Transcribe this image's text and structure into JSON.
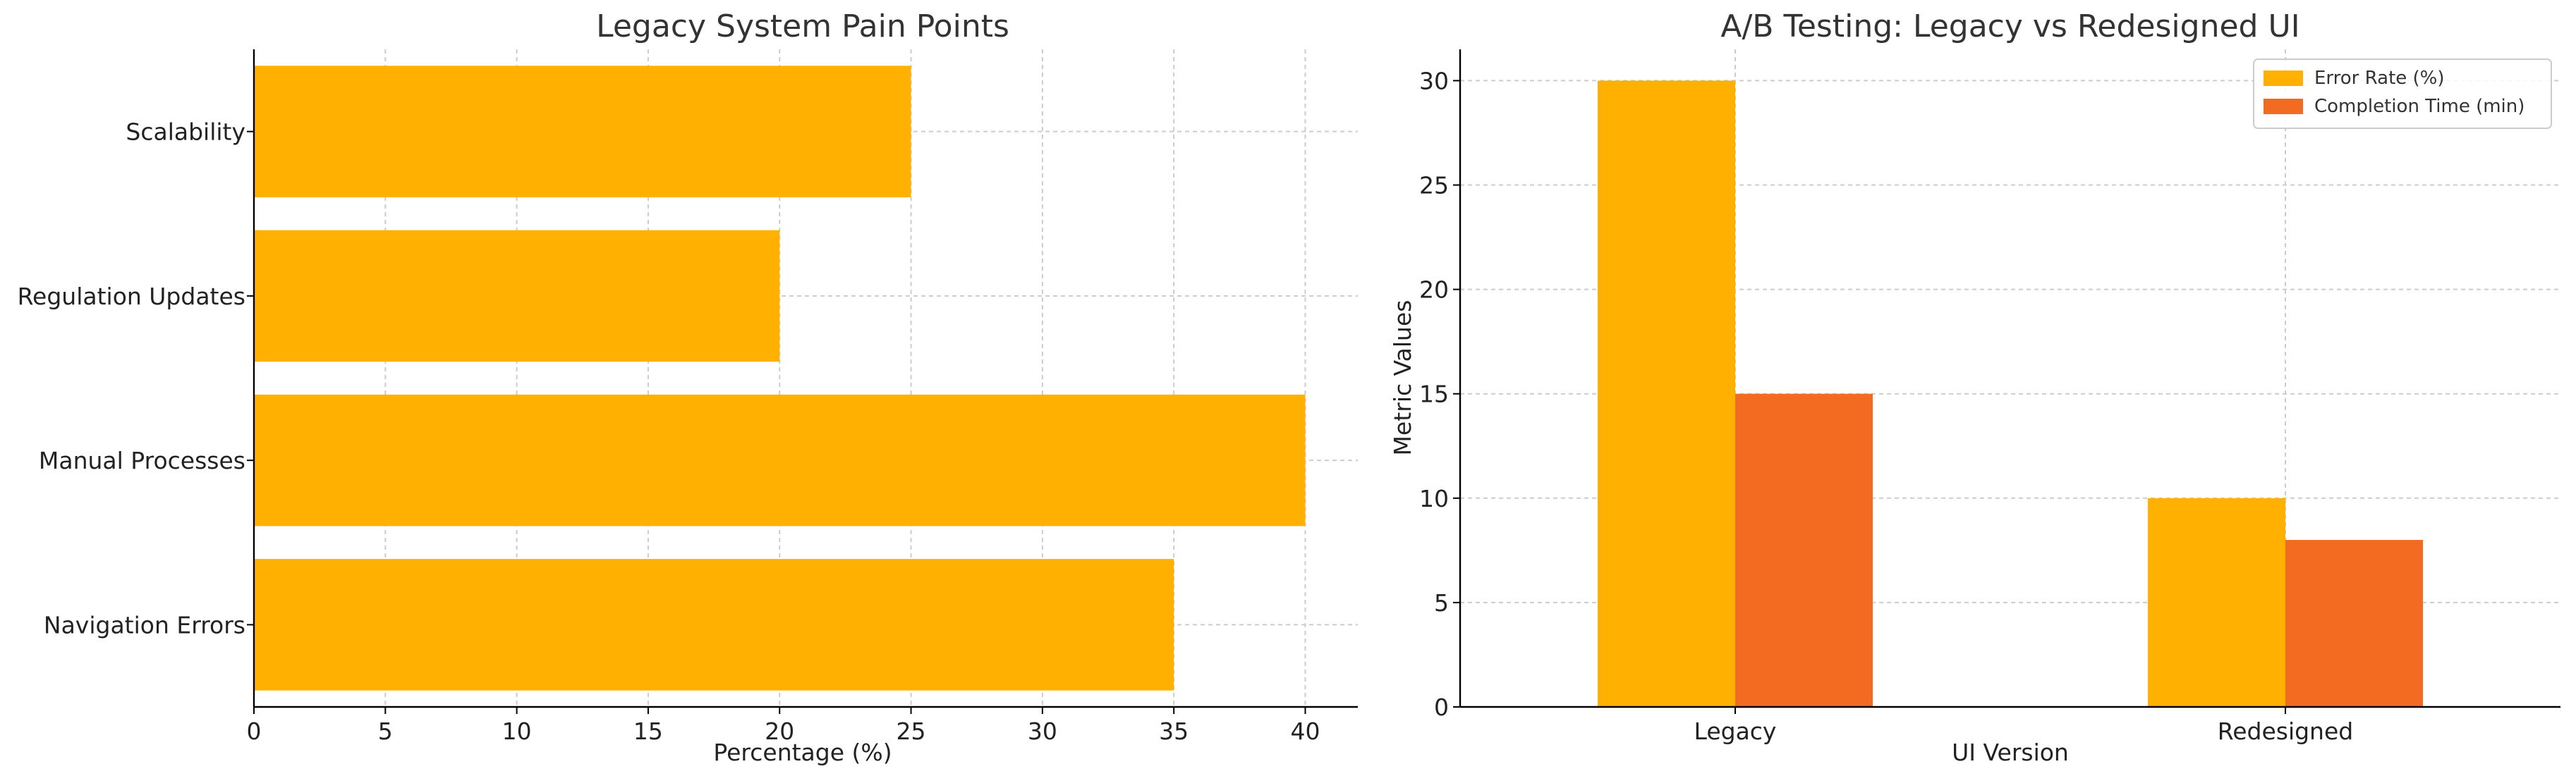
{
  "colors": {
    "error_rate": "#FFB000",
    "completion_time": "#F26B21",
    "pain_bar": "#FFB000"
  },
  "chart_data": [
    {
      "type": "bar",
      "orientation": "horizontal",
      "title": "Legacy System Pain Points",
      "xlabel": "Percentage (%)",
      "ylabel": "",
      "categories": [
        "Navigation Errors",
        "Manual Processes",
        "Regulation Updates",
        "Scalability"
      ],
      "values": [
        35,
        40,
        20,
        25
      ],
      "xlim": [
        0,
        42
      ],
      "xticks": [
        0,
        5,
        10,
        15,
        20,
        25,
        30,
        35,
        40
      ],
      "grid": true
    },
    {
      "type": "bar",
      "orientation": "vertical",
      "title": "A/B Testing: Legacy vs Redesigned UI",
      "xlabel": "UI Version",
      "ylabel": "Metric Values",
      "categories": [
        "Legacy",
        "Redesigned"
      ],
      "series": [
        {
          "name": "Error Rate (%)",
          "values": [
            30,
            10
          ]
        },
        {
          "name": "Completion Time (min)",
          "values": [
            15,
            8
          ]
        }
      ],
      "ylim": [
        0,
        31.5
      ],
      "yticks": [
        0,
        5,
        10,
        15,
        20,
        25,
        30
      ],
      "legend": "top-right",
      "grid": true
    }
  ]
}
